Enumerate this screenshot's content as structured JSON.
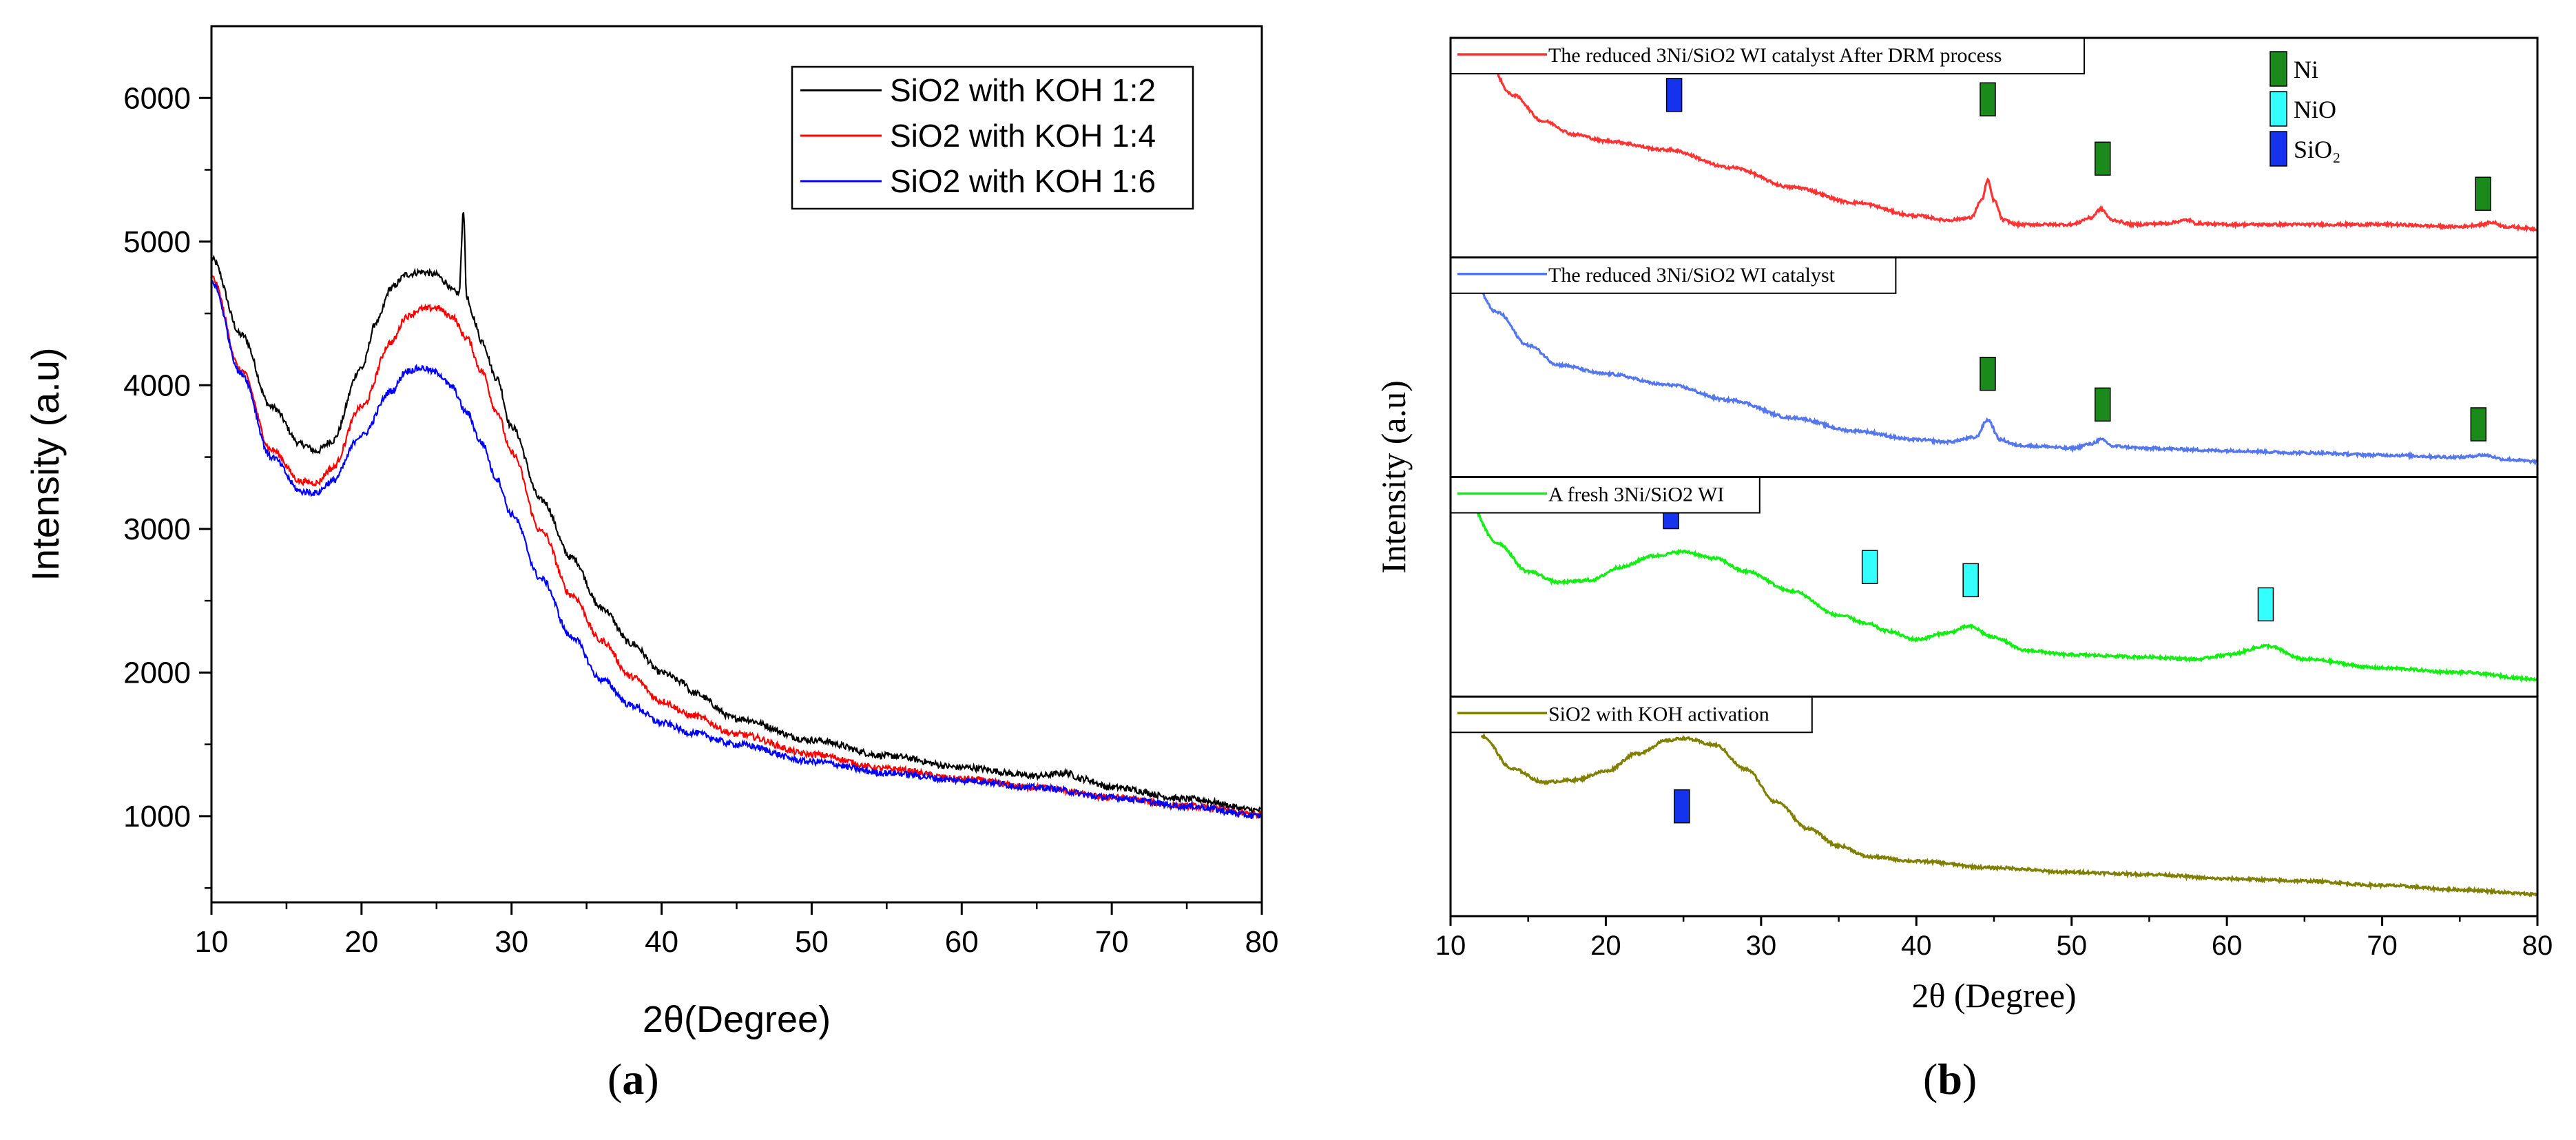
{
  "chart_data": [
    {
      "type": "line",
      "panel_label": "a",
      "xlabel": "2θ(Degree)",
      "ylabel": "Intensity (a.u)",
      "xlim": [
        10,
        80
      ],
      "ylim": [
        400,
        6500
      ],
      "x_ticks": [
        10,
        20,
        30,
        40,
        50,
        60,
        70,
        80
      ],
      "y_ticks": [
        1000,
        2000,
        3000,
        4000,
        5000,
        6000
      ],
      "legend_position": "top-right",
      "series": [
        {
          "name": "SiO2 with KOH 1:2",
          "color": "#000000",
          "x": [
            10,
            12,
            14,
            16,
            17,
            18,
            20,
            21,
            22,
            23,
            24,
            25,
            25.6,
            26.0,
            26.5,
            26.8,
            27.0,
            27.4,
            28,
            29,
            30,
            32,
            34,
            36,
            38,
            40,
            41.5,
            42,
            45,
            50,
            55,
            60,
            65,
            67,
            68,
            70,
            75,
            80
          ],
          "y": [
            4880,
            4350,
            3850,
            3590,
            3540,
            3610,
            4120,
            4440,
            4680,
            4770,
            4790,
            4770,
            4720,
            4660,
            4640,
            5220,
            4620,
            4480,
            4310,
            4050,
            3710,
            3200,
            2800,
            2450,
            2200,
            2000,
            1930,
            1860,
            1680,
            1530,
            1420,
            1340,
            1280,
            1300,
            1260,
            1200,
            1120,
            1040
          ]
        },
        {
          "name": "SiO2 with KOH 1:4",
          "color": "#ff0000",
          "x": [
            10,
            12,
            14,
            16,
            17,
            18,
            20,
            22,
            23,
            24,
            25,
            26,
            27,
            28,
            29,
            30,
            32,
            34,
            36,
            38,
            40,
            42,
            45,
            50,
            55,
            60,
            65,
            70,
            75,
            80
          ],
          "y": [
            4750,
            4100,
            3550,
            3330,
            3320,
            3420,
            3850,
            4300,
            4480,
            4530,
            4540,
            4480,
            4330,
            4100,
            3820,
            3530,
            2980,
            2540,
            2220,
            1970,
            1800,
            1700,
            1570,
            1430,
            1330,
            1260,
            1200,
            1130,
            1070,
            1010
          ]
        },
        {
          "name": "SiO2 with KOH 1:6",
          "color": "#0000ff",
          "x": [
            10,
            12,
            14,
            16,
            17,
            18,
            20,
            22,
            23,
            24,
            25,
            26,
            27,
            28,
            29,
            30,
            32,
            34,
            36,
            38,
            40,
            42,
            45,
            50,
            55,
            60,
            65,
            70,
            75,
            80
          ],
          "y": [
            4720,
            4080,
            3500,
            3260,
            3250,
            3330,
            3650,
            3960,
            4100,
            4120,
            4090,
            3990,
            3810,
            3600,
            3350,
            3100,
            2650,
            2250,
            1950,
            1770,
            1650,
            1580,
            1500,
            1380,
            1300,
            1250,
            1200,
            1130,
            1070,
            1000
          ]
        }
      ]
    },
    {
      "type": "line",
      "panel_label": "b",
      "xlabel": "2θ (Degree)",
      "ylabel": "Intensity (a.u)",
      "xlim": [
        10,
        80
      ],
      "x_ticks": [
        10,
        20,
        30,
        40,
        50,
        60,
        70,
        80
      ],
      "legend": [
        {
          "label": "Ni",
          "color": "#1a8a1a"
        },
        {
          "label": "NiO",
          "color": "#33ffff"
        },
        {
          "label": "SiO₂",
          "color": "#1533ee"
        }
      ],
      "stacked_panels": [
        {
          "label": "The reduced 3Ni/SiO2 WI catalyst After DRM process",
          "color": "#ff3333",
          "x": [
            12,
            14,
            16,
            18,
            20,
            24,
            28,
            32,
            36,
            40,
            42,
            43.5,
            44.2,
            44.6,
            45.0,
            45.6,
            46.5,
            48,
            50,
            51.2,
            51.9,
            52.6,
            54,
            56,
            57.5,
            58,
            60,
            65,
            70,
            75,
            76.5,
            77,
            78,
            80
          ],
          "y": [
            0.95,
            0.74,
            0.62,
            0.56,
            0.53,
            0.49,
            0.41,
            0.32,
            0.25,
            0.19,
            0.17,
            0.18,
            0.26,
            0.35,
            0.26,
            0.17,
            0.15,
            0.15,
            0.15,
            0.18,
            0.22,
            0.17,
            0.15,
            0.155,
            0.17,
            0.155,
            0.15,
            0.15,
            0.15,
            0.14,
            0.15,
            0.16,
            0.14,
            0.13
          ],
          "markers": [
            {
              "phase": "SiO₂",
              "x": 24.4,
              "level": 0.74
            },
            {
              "phase": "Ni",
              "x": 44.6,
              "level": 0.72
            },
            {
              "phase": "Ni",
              "x": 52.0,
              "level": 0.45
            },
            {
              "phase": "Ni",
              "x": 76.5,
              "level": 0.29
            }
          ]
        },
        {
          "label": "The reduced 3Ni/SiO2 WI catalyst",
          "color": "#5577ee",
          "x": [
            11,
            13,
            15,
            17,
            20,
            24,
            28,
            32,
            36,
            40,
            42,
            43.8,
            44.6,
            45.4,
            46.5,
            48,
            50,
            51.2,
            51.9,
            52.7,
            55,
            60,
            65,
            70,
            75,
            76.5,
            78,
            80
          ],
          "y": [
            0.95,
            0.75,
            0.6,
            0.51,
            0.47,
            0.42,
            0.35,
            0.27,
            0.21,
            0.17,
            0.16,
            0.18,
            0.26,
            0.17,
            0.145,
            0.14,
            0.13,
            0.15,
            0.17,
            0.14,
            0.13,
            0.12,
            0.11,
            0.1,
            0.09,
            0.1,
            0.08,
            0.07
          ],
          "markers": [
            {
              "phase": "Ni",
              "x": 44.6,
              "level": 0.47
            },
            {
              "phase": "Ni",
              "x": 52.0,
              "level": 0.33
            },
            {
              "phase": "Ni",
              "x": 76.2,
              "level": 0.24
            }
          ]
        },
        {
          "label": "A fresh 3Ni/SiO2 WI",
          "color": "#11ee11",
          "x": [
            11,
            13,
            15,
            17,
            19,
            21,
            23,
            25,
            27,
            29,
            32,
            35,
            37,
            38,
            40,
            42,
            43.4,
            45,
            47,
            50,
            55,
            58,
            60,
            62.6,
            65,
            70,
            75,
            80
          ],
          "y": [
            0.9,
            0.7,
            0.57,
            0.52,
            0.53,
            0.59,
            0.64,
            0.66,
            0.63,
            0.57,
            0.48,
            0.37,
            0.33,
            0.3,
            0.26,
            0.29,
            0.32,
            0.27,
            0.21,
            0.19,
            0.18,
            0.17,
            0.19,
            0.23,
            0.17,
            0.13,
            0.11,
            0.08
          ],
          "markers": [
            {
              "phase": "SiO₂",
              "x": 24.2,
              "level": 0.84
            },
            {
              "phase": "NiO",
              "x": 37.0,
              "level": 0.59
            },
            {
              "phase": "NiO",
              "x": 43.5,
              "level": 0.53
            },
            {
              "phase": "NiO",
              "x": 62.5,
              "level": 0.42
            }
          ]
        },
        {
          "label": "SiO2 with KOH activation",
          "color": "#808000",
          "x": [
            12,
            14,
            16,
            18,
            20,
            22,
            24,
            25,
            27,
            29,
            31,
            33,
            35,
            37,
            40,
            45,
            50,
            55,
            60,
            65,
            70,
            75,
            80
          ],
          "y": [
            0.82,
            0.67,
            0.61,
            0.62,
            0.66,
            0.74,
            0.8,
            0.81,
            0.78,
            0.67,
            0.52,
            0.4,
            0.32,
            0.27,
            0.25,
            0.22,
            0.2,
            0.19,
            0.17,
            0.16,
            0.14,
            0.12,
            0.1
          ],
          "markers": [
            {
              "phase": "SiO₂",
              "x": 24.9,
              "level": 0.5
            }
          ]
        }
      ]
    }
  ]
}
